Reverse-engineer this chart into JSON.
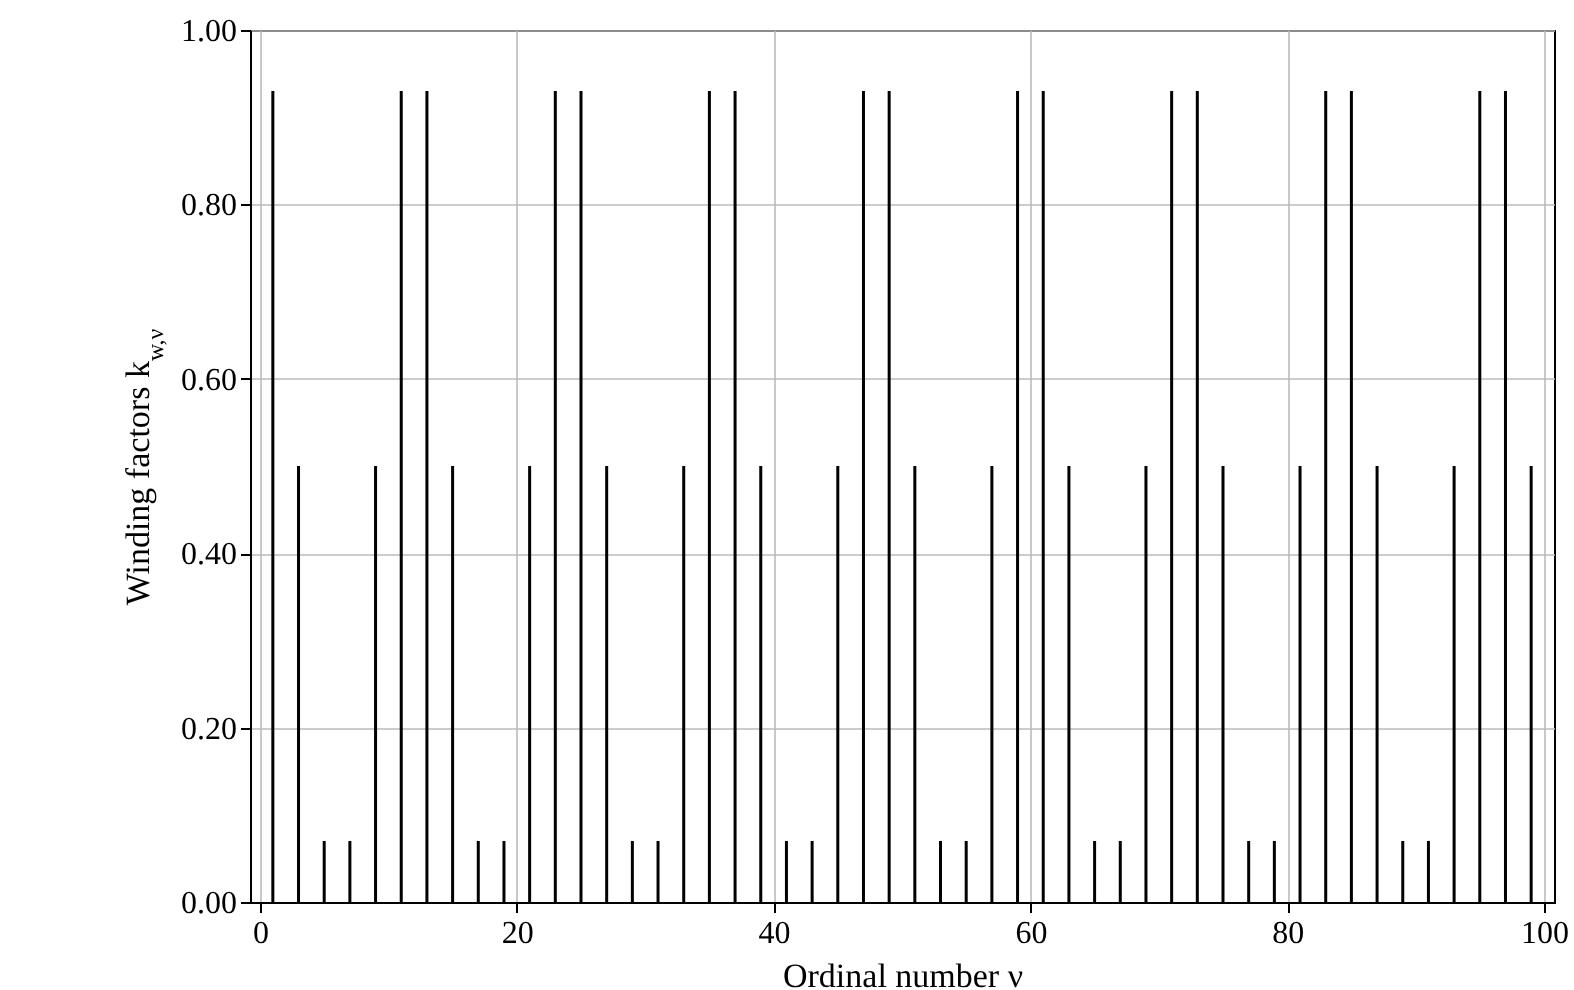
{
  "chart_data": {
    "type": "bar",
    "xlabel": "Ordinal number ν",
    "ylabel": "Winding factors k$_{w,ν}$",
    "x": [
      1,
      3,
      5,
      7,
      9,
      11,
      13,
      15,
      17,
      19,
      21,
      23,
      25,
      27,
      29,
      31,
      33,
      35,
      37,
      39,
      41,
      43,
      45,
      47,
      49,
      51,
      53,
      55,
      57,
      59,
      61,
      63,
      65,
      67,
      69,
      71,
      73,
      75,
      77,
      79,
      81,
      83,
      85,
      87,
      89,
      91,
      93,
      95,
      97,
      99
    ],
    "values": [
      0.93,
      0.5,
      0.07,
      0.07,
      0.5,
      0.93,
      0.93,
      0.5,
      0.07,
      0.07,
      0.5,
      0.93,
      0.93,
      0.5,
      0.07,
      0.07,
      0.5,
      0.93,
      0.93,
      0.5,
      0.07,
      0.07,
      0.5,
      0.93,
      0.93,
      0.5,
      0.07,
      0.07,
      0.5,
      0.93,
      0.93,
      0.5,
      0.07,
      0.07,
      0.5,
      0.93,
      0.93,
      0.5,
      0.07,
      0.07,
      0.5,
      0.93,
      0.93,
      0.5,
      0.07,
      0.07,
      0.5,
      0.93,
      0.93,
      0.5
    ],
    "color": "#000000",
    "xlim": [
      0,
      100
    ],
    "xticks": [
      0,
      20,
      40,
      60,
      80,
      100
    ],
    "ylim": [
      0,
      1
    ],
    "yticks": [
      {
        "value": 0,
        "label": "0.00"
      },
      {
        "value": 0.2,
        "label": "0.20"
      },
      {
        "value": 0.4,
        "label": "0.40"
      },
      {
        "value": 0.6,
        "label": "0.60"
      },
      {
        "value": 0.8,
        "label": "0.80"
      },
      {
        "value": 1,
        "label": "1.00"
      }
    ],
    "grid": true
  }
}
